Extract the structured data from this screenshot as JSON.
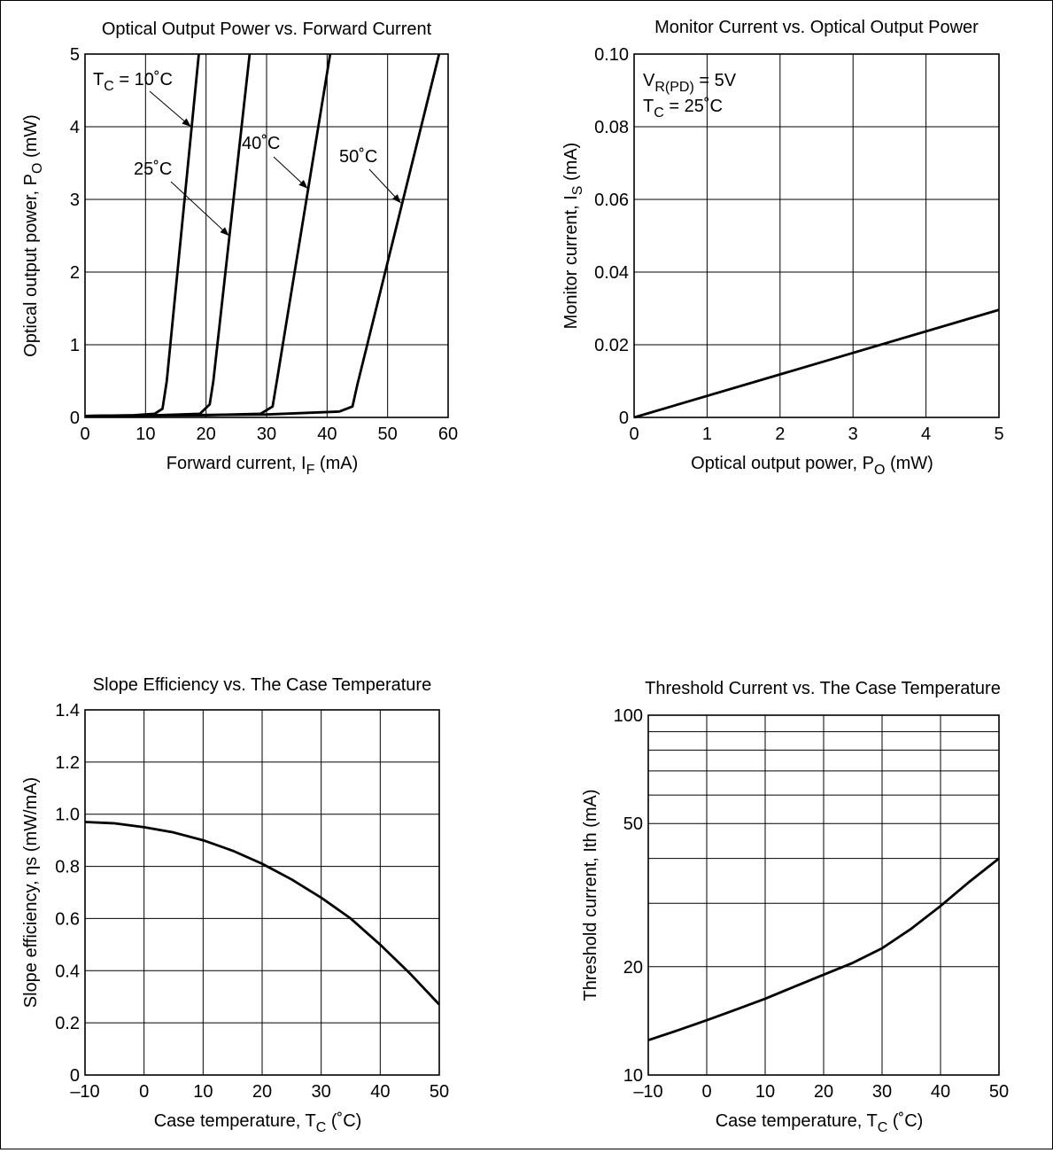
{
  "chart_data": [
    {
      "type": "line",
      "title": "Optical Output Power vs. Forward Current",
      "xlabel": "Forward current,  I",
      "xlabel_sub": "F",
      "xlabel_unit": " (mA)",
      "ylabel": "Optical output power,  P",
      "ylabel_sub": "O",
      "ylabel_unit": " (mW)",
      "xlim": [
        0,
        60
      ],
      "ylim": [
        0,
        5
      ],
      "xticks": [
        0,
        10,
        20,
        30,
        40,
        50,
        60
      ],
      "yticks": [
        0,
        1,
        2,
        3,
        4,
        5
      ],
      "xtick_labels": [
        "0",
        "10",
        "20",
        "30",
        "40",
        "50",
        "60"
      ],
      "ytick_labels": [
        "0",
        "1",
        "2",
        "3",
        "4",
        "5"
      ],
      "grid": true,
      "series": [
        {
          "name": "T_C = 10˚C",
          "points": [
            [
              0,
              0.02
            ],
            [
              8,
              0.03
            ],
            [
              11.5,
              0.05
            ],
            [
              12.8,
              0.12
            ],
            [
              13.5,
              0.5
            ],
            [
              18.8,
              5
            ]
          ]
        },
        {
          "name": "25˚C",
          "points": [
            [
              0,
              0.02
            ],
            [
              12,
              0.03
            ],
            [
              19,
              0.05
            ],
            [
              20.6,
              0.18
            ],
            [
              21.2,
              0.5
            ],
            [
              27.2,
              5
            ]
          ]
        },
        {
          "name": "40˚C",
          "points": [
            [
              0,
              0.02
            ],
            [
              20,
              0.03
            ],
            [
              29,
              0.05
            ],
            [
              31,
              0.15
            ],
            [
              31.7,
              0.5
            ],
            [
              40.5,
              5
            ]
          ]
        },
        {
          "name": "50˚C",
          "points": [
            [
              0,
              0.02
            ],
            [
              30,
              0.04
            ],
            [
              42,
              0.08
            ],
            [
              44.2,
              0.15
            ],
            [
              45,
              0.45
            ],
            [
              58.5,
              5
            ]
          ]
        }
      ],
      "annotations": [
        {
          "text": "T",
          "sub": "C",
          "rest": " = 10˚C",
          "target": [
            17.5,
            4
          ]
        },
        {
          "text": "25˚C",
          "sub": "",
          "rest": "",
          "target": [
            23.8,
            2.5
          ]
        },
        {
          "text": "40˚C",
          "sub": "",
          "rest": "",
          "target": [
            36.8,
            3.15
          ]
        },
        {
          "text": "50˚C",
          "sub": "",
          "rest": "",
          "target": [
            52.2,
            2.95
          ]
        }
      ]
    },
    {
      "type": "line",
      "title": "Monitor Current vs. Optical Output Power",
      "xlabel": "Optical output power,  P",
      "xlabel_sub": "O",
      "xlabel_unit": " (mW)",
      "ylabel": "Monitor current,  I",
      "ylabel_sub": "S",
      "ylabel_unit": " (mA)",
      "xlim": [
        0,
        5
      ],
      "ylim": [
        0,
        0.1
      ],
      "xticks": [
        0,
        1,
        2,
        3,
        4,
        5
      ],
      "yticks": [
        0,
        0.02,
        0.04,
        0.06,
        0.08,
        0.1
      ],
      "xtick_labels": [
        "0",
        "1",
        "2",
        "3",
        "4",
        "5"
      ],
      "ytick_labels": [
        "0",
        "0.02",
        "0.04",
        "0.06",
        "0.08",
        "0.10"
      ],
      "grid": true,
      "series": [
        {
          "name": "",
          "points": [
            [
              0,
              0
            ],
            [
              5,
              0.0296
            ]
          ]
        }
      ],
      "conditions": [
        {
          "text": "V",
          "sub": "R(PD)",
          "rest": " = 5V"
        },
        {
          "text": "T",
          "sub": "C",
          "rest": " = 25˚C"
        }
      ]
    },
    {
      "type": "line",
      "title": "Slope Efficiency vs. The Case Temperature",
      "xlabel": "Case temperature,  T",
      "xlabel_sub": "C",
      "xlabel_unit": " (˚C)",
      "ylabel": "Slope efficiency,  ηs  (mW/mA)",
      "ylabel_sub": "",
      "ylabel_unit": "",
      "xlim": [
        -10,
        50
      ],
      "ylim": [
        0,
        1.4
      ],
      "xticks": [
        -10,
        0,
        10,
        20,
        30,
        40,
        50
      ],
      "yticks": [
        0,
        0.2,
        0.4,
        0.6,
        0.8,
        1.0,
        1.2,
        1.4
      ],
      "xtick_labels": [
        "–10",
        "0",
        "10",
        "20",
        "30",
        "40",
        "50"
      ],
      "ytick_labels": [
        "0",
        "0.2",
        "0.4",
        "0.6",
        "0.8",
        "1.0",
        "1.2",
        "1.4"
      ],
      "grid": true,
      "series": [
        {
          "name": "",
          "points": [
            [
              -10,
              0.97
            ],
            [
              -5,
              0.965
            ],
            [
              0,
              0.95
            ],
            [
              5,
              0.93
            ],
            [
              10,
              0.9
            ],
            [
              15,
              0.86
            ],
            [
              20,
              0.81
            ],
            [
              25,
              0.75
            ],
            [
              30,
              0.68
            ],
            [
              35,
              0.6
            ],
            [
              40,
              0.5
            ],
            [
              45,
              0.39
            ],
            [
              50,
              0.27
            ]
          ]
        }
      ]
    },
    {
      "type": "line",
      "title": "Threshold Current vs. The Case Temperature",
      "xlabel": "Case temperature,  T",
      "xlabel_sub": "C",
      "xlabel_unit": " (˚C)",
      "ylabel": "Threshold current,  Ith  (mA)",
      "ylabel_sub": "",
      "ylabel_unit": "",
      "xlim": [
        -10,
        50
      ],
      "ylim": [
        10,
        100
      ],
      "yscale": "log",
      "xticks": [
        -10,
        0,
        10,
        20,
        30,
        40,
        50
      ],
      "yticks": [
        10,
        20,
        50,
        100
      ],
      "yminor": [
        30,
        40,
        60,
        70,
        80,
        90
      ],
      "xtick_labels": [
        "–10",
        "0",
        "10",
        "20",
        "30",
        "40",
        "50"
      ],
      "ytick_labels": [
        "10",
        "20",
        "50",
        "100"
      ],
      "grid": true,
      "series": [
        {
          "name": "",
          "points": [
            [
              -10,
              12.5
            ],
            [
              -5,
              13.3
            ],
            [
              0,
              14.2
            ],
            [
              5,
              15.2
            ],
            [
              10,
              16.3
            ],
            [
              15,
              17.6
            ],
            [
              20,
              19
            ],
            [
              25,
              20.5
            ],
            [
              30,
              22.5
            ],
            [
              35,
              25.5
            ],
            [
              40,
              29.5
            ],
            [
              45,
              34.5
            ],
            [
              50,
              40
            ]
          ]
        }
      ]
    }
  ]
}
